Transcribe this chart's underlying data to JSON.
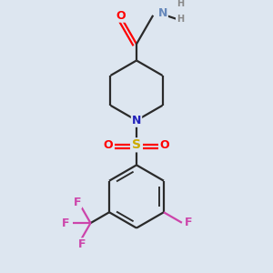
{
  "bg_color": "#dde6f0",
  "bond_color": "#2a2a2a",
  "bond_width": 1.6,
  "atom_colors": {
    "O": "#ff0000",
    "N_amide": "#6688bb",
    "N_pip": "#2222bb",
    "S": "#ccaa00",
    "F": "#cc44aa",
    "H": "#888888"
  },
  "fig_size": [
    3.0,
    3.0
  ],
  "dpi": 100
}
